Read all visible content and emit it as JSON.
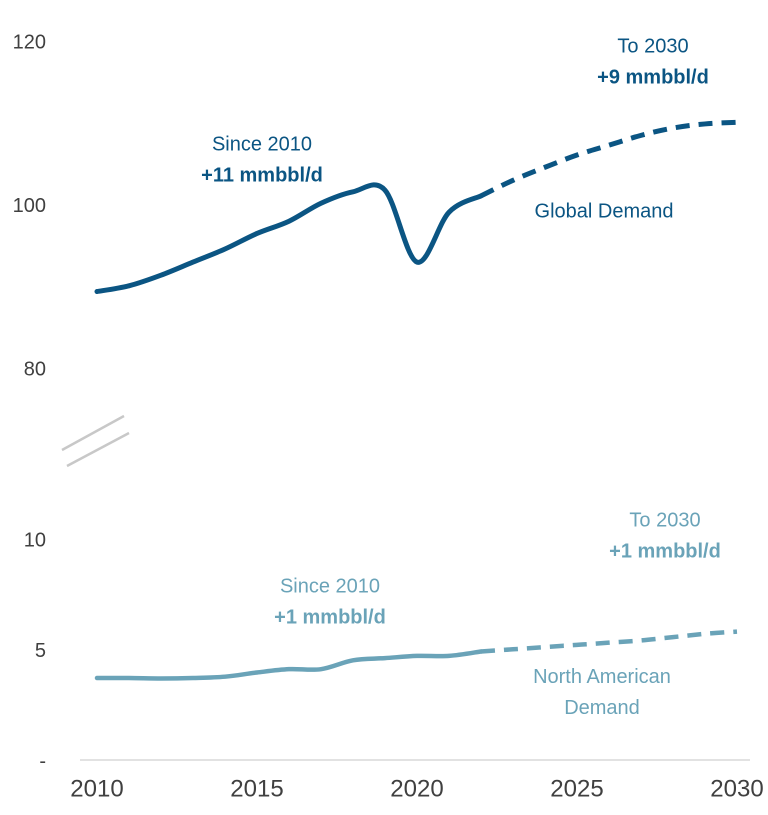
{
  "chart_data": [
    {
      "type": "line",
      "xlim": [
        2010,
        2030
      ],
      "ylim": [
        80,
        120
      ],
      "yticks": [
        80,
        100,
        120
      ],
      "x": [
        2010,
        2011,
        2012,
        2013,
        2014,
        2015,
        2016,
        2017,
        2018,
        2019,
        2020,
        2021,
        2022,
        2023,
        2024,
        2025,
        2026,
        2027,
        2028,
        2029,
        2030
      ],
      "series": [
        {
          "name": "Global Demand",
          "color": "#0b5583",
          "values": [
            89.6,
            90.3,
            91.6,
            93.2,
            94.8,
            96.7,
            98.2,
            100.4,
            101.8,
            102,
            93.2,
            99.3,
            101.3,
            null,
            null,
            null,
            null,
            null,
            null,
            null,
            null
          ]
        },
        {
          "color": "#0b5583",
          "dashed": true,
          "values": [
            null,
            null,
            null,
            null,
            null,
            null,
            null,
            null,
            null,
            null,
            null,
            null,
            101.3,
            103.2,
            104.8,
            106.3,
            107.5,
            108.7,
            109.6,
            110.1,
            110.3
          ]
        }
      ],
      "annotations": [
        {
          "lines": [
            "Since 2010",
            "+11 mmbbl/d"
          ]
        },
        {
          "lines": [
            "To 2030",
            "+9 mmbbl/d"
          ]
        }
      ]
    },
    {
      "type": "line",
      "xlim": [
        2010,
        2030
      ],
      "xticks": [
        2010,
        2015,
        2020,
        2025,
        2030
      ],
      "ylim": [
        0,
        10
      ],
      "yticks": [
        {
          "value": 0,
          "label": "-"
        },
        5,
        10
      ],
      "x": [
        2010,
        2011,
        2012,
        2013,
        2014,
        2015,
        2016,
        2017,
        2018,
        2019,
        2020,
        2021,
        2022,
        2023,
        2024,
        2025,
        2026,
        2027,
        2028,
        2029,
        2030
      ],
      "series": [
        {
          "name": "North American Demand",
          "color": "#6aa3b8",
          "values": [
            3.8,
            3.8,
            3.78,
            3.8,
            3.86,
            4.05,
            4.2,
            4.2,
            4.6,
            4.7,
            4.8,
            4.8,
            5.0,
            null,
            null,
            null,
            null,
            null,
            null,
            null,
            null
          ]
        },
        {
          "color": "#6aa3b8",
          "dashed": true,
          "values": [
            null,
            null,
            null,
            null,
            null,
            null,
            null,
            null,
            null,
            null,
            null,
            null,
            5.0,
            5.1,
            5.2,
            5.3,
            5.4,
            5.5,
            5.65,
            5.8,
            5.9
          ]
        }
      ],
      "annotations": [
        {
          "lines": [
            "To 2030",
            "+1 mmbbl/d"
          ]
        },
        {
          "lines": [
            "Since 2010",
            "+1 mmbbl/d"
          ]
        }
      ]
    }
  ]
}
